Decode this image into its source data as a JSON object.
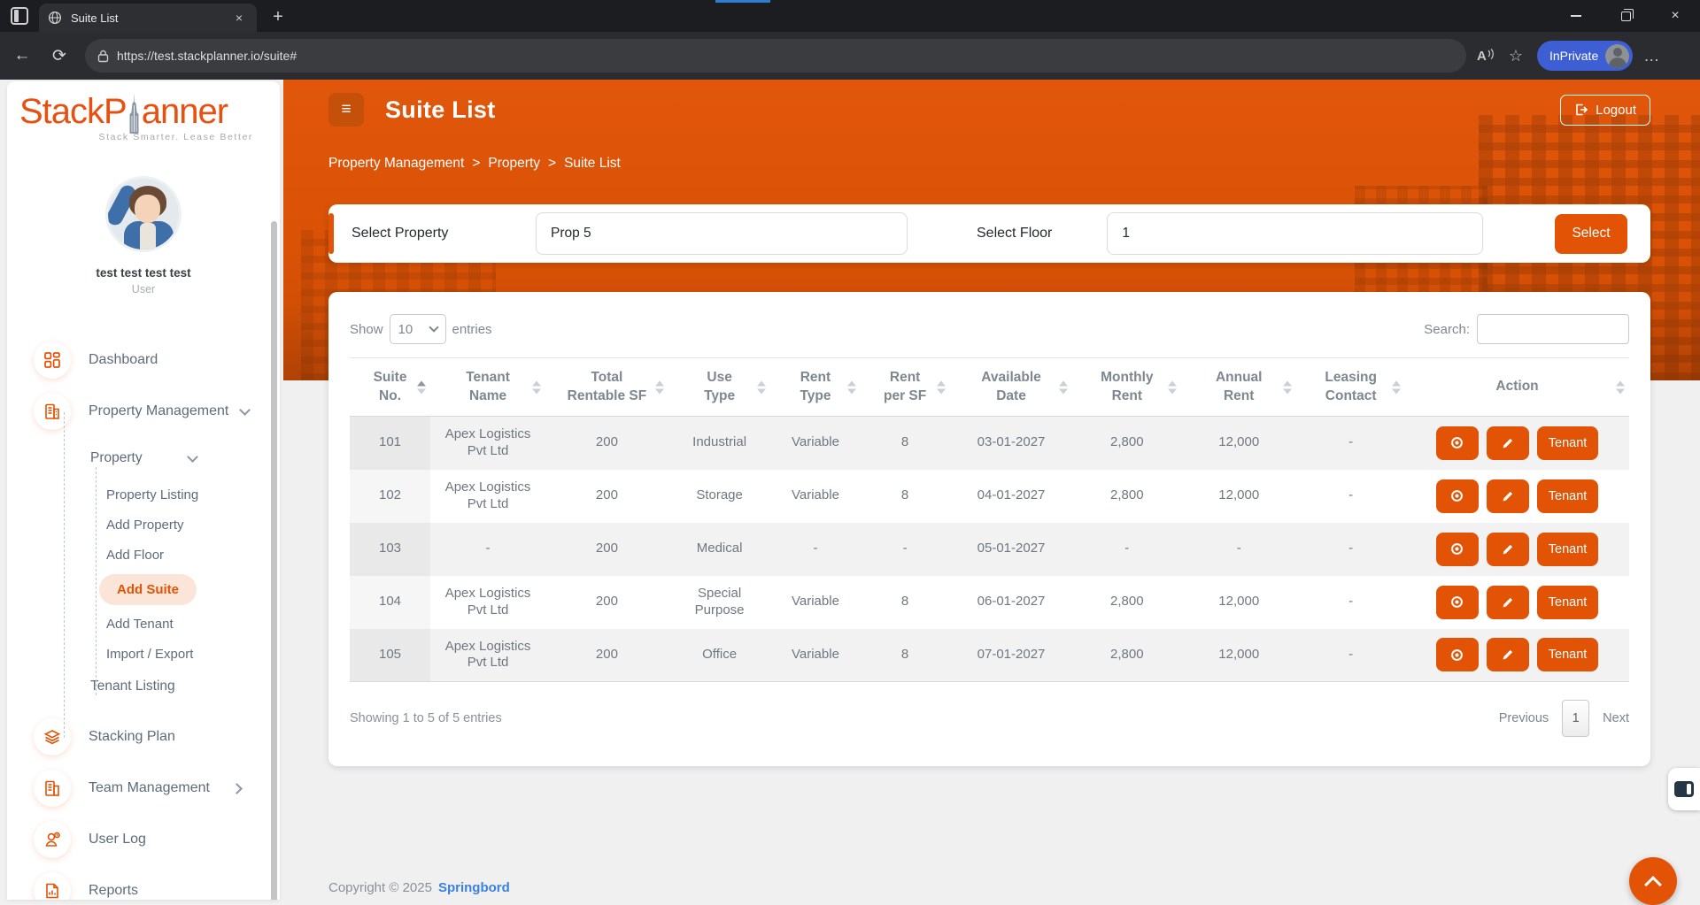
{
  "browser": {
    "tab_title": "Suite List",
    "url": "https://test.stackplanner.io/suite#",
    "inprivate_label": "InPrivate",
    "glyphs": {
      "close_tab": "×",
      "new_tab": "+",
      "back": "←",
      "refresh": "⟳",
      "read_aloud": "A",
      "star": "☆",
      "ellipsis": "…",
      "close_window": "×"
    }
  },
  "brand": {
    "logo_left": "StackP",
    "logo_right": "anner",
    "tagline": "Stack Smarter. Lease Better"
  },
  "user": {
    "name": "test test test test",
    "role": "User"
  },
  "sidebar": {
    "dashboard": "Dashboard",
    "property_management": "Property Management",
    "property": "Property",
    "property_listing": "Property Listing",
    "add_property": "Add Property",
    "add_floor": "Add Floor",
    "add_suite": "Add Suite",
    "add_tenant": "Add Tenant",
    "import_export": "Import / Export",
    "tenant_listing": "Tenant Listing",
    "stacking_plan": "Stacking Plan",
    "team_management": "Team Management",
    "user_log": "User Log",
    "reports": "Reports"
  },
  "header": {
    "title": "Suite List",
    "hamburger_glyph": "≡",
    "logout_label": "Logout",
    "breadcrumb": [
      "Property Management",
      "Property",
      "Suite List"
    ],
    "breadcrumb_separator": ">"
  },
  "filters": {
    "property_label": "Select Property",
    "property_value": "Prop 5",
    "floor_label": "Select Floor",
    "floor_value": "1",
    "select_button": "Select"
  },
  "table": {
    "show_label": "Show",
    "page_size": "10",
    "entries_label": "entries",
    "search_label": "Search:",
    "search_value": "",
    "columns": [
      "Suite\nNo.",
      "Tenant\nName",
      "Total\nRentable SF",
      "Use\nType",
      "Rent\nType",
      "Rent\nper SF",
      "Available\nDate",
      "Monthly\nRent",
      "Annual\nRent",
      "Leasing\nContact",
      "Action"
    ],
    "rows": [
      [
        "101",
        "Apex Logistics Pvt Ltd",
        "200",
        "Industrial",
        "Variable",
        "8",
        "03-01-2027",
        "2,800",
        "12,000",
        "-"
      ],
      [
        "102",
        "Apex Logistics Pvt Ltd",
        "200",
        "Storage",
        "Variable",
        "8",
        "04-01-2027",
        "2,800",
        "12,000",
        "-"
      ],
      [
        "103",
        "-",
        "200",
        "Medical",
        "-",
        "-",
        "05-01-2027",
        "-",
        "-",
        "-"
      ],
      [
        "104",
        "Apex Logistics Pvt Ltd",
        "200",
        "Special Purpose",
        "Variable",
        "8",
        "06-01-2027",
        "2,800",
        "12,000",
        "-"
      ],
      [
        "105",
        "Apex Logistics Pvt Ltd",
        "200",
        "Office",
        "Variable",
        "8",
        "07-01-2027",
        "2,800",
        "12,000",
        "-"
      ]
    ],
    "tenant_button_label": "Tenant",
    "info": "Showing 1 to 5 of 5 entries",
    "pagination": {
      "previous": "Previous",
      "current": "1",
      "next": "Next"
    }
  },
  "footer": {
    "copyright": "Copyright © 2025",
    "brand_link": "Springbord"
  },
  "colors": {
    "primary": "#E25305",
    "banner": "#DA5206",
    "active_item_bg": "#FBE5D8",
    "link_blue": "#3B82E0",
    "inprivate_blue": "#3D5FD3"
  }
}
